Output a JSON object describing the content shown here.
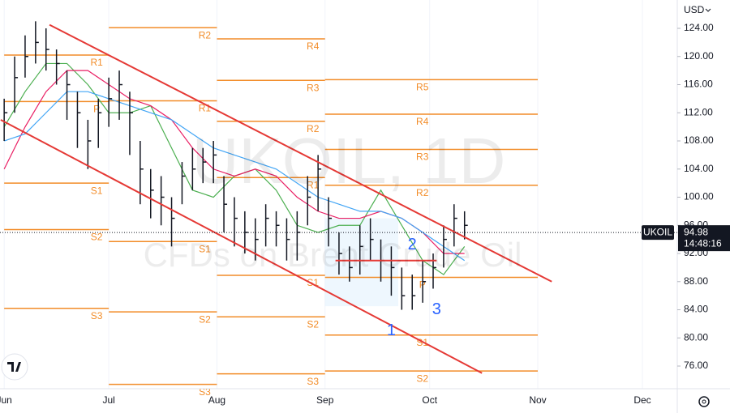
{
  "chart_data": {
    "type": "ohlc",
    "title": "UKOIL, 1D",
    "subtitle": "CFDs on Brent Crude Oil",
    "currency": "USD",
    "symbol": "UKOIL",
    "last_price": 94.98,
    "countdown": "14:48:16",
    "xlim": [
      -1.2,
      193
    ],
    "ylim": [
      72.78,
      128.03
    ],
    "xticks": [
      {
        "value": 0,
        "label": "Jun"
      },
      {
        "value": 30,
        "label": "Jul"
      },
      {
        "value": 61,
        "label": "Aug"
      },
      {
        "value": 92,
        "label": "Sep"
      },
      {
        "value": 122,
        "label": "Oct"
      },
      {
        "value": 153,
        "label": "Nov"
      },
      {
        "value": 183,
        "label": "Dec"
      }
    ],
    "yticks": [
      {
        "value": 76,
        "label": "76.00"
      },
      {
        "value": 80,
        "label": "80.00"
      },
      {
        "value": 84,
        "label": "84.00"
      },
      {
        "value": 88,
        "label": "88.00"
      },
      {
        "value": 92,
        "label": "92.00"
      },
      {
        "value": 96,
        "label": "96.00"
      },
      {
        "value": 100,
        "label": "100.00"
      },
      {
        "value": 104,
        "label": "104.00"
      },
      {
        "value": 108,
        "label": "108.00"
      },
      {
        "value": 112,
        "label": "112.00"
      },
      {
        "value": 116,
        "label": "116.00"
      },
      {
        "value": 120,
        "label": "120.00"
      },
      {
        "value": 124,
        "label": "124.00"
      }
    ],
    "bar_color": "#131722",
    "x": [
      0,
      3,
      6,
      9,
      12,
      15,
      18,
      21,
      24,
      27,
      30,
      33,
      36,
      39,
      42,
      45,
      48,
      51,
      54,
      57,
      60,
      63,
      66,
      69,
      72,
      75,
      78,
      81,
      84,
      87,
      90,
      93,
      96,
      99,
      102,
      105,
      108,
      111,
      114,
      117,
      120,
      123,
      126,
      129,
      132
    ],
    "high": [
      114,
      120,
      123,
      125,
      124,
      121,
      118,
      115,
      111,
      114,
      117,
      118,
      115,
      108,
      104,
      103,
      100,
      105,
      107,
      107,
      108,
      103,
      100,
      98,
      97,
      99,
      98,
      97,
      98,
      103,
      106,
      100,
      95,
      93,
      96,
      97,
      94,
      93,
      90,
      89,
      91,
      92,
      96,
      99,
      98
    ],
    "low": [
      108,
      112,
      117,
      119,
      118,
      116,
      111,
      107,
      104,
      107,
      110,
      111,
      106,
      99,
      97,
      96,
      93,
      99,
      101,
      102,
      102,
      95,
      93,
      92,
      91,
      93,
      93,
      91,
      91,
      96,
      98,
      93,
      89,
      88,
      89,
      91,
      88,
      86,
      84,
      84,
      85,
      87,
      90,
      93,
      94
    ],
    "close": [
      112,
      117,
      120,
      122,
      121,
      119,
      116,
      112,
      108,
      112,
      114,
      116,
      112,
      104,
      101,
      100,
      97,
      103,
      104,
      105,
      106,
      99,
      97,
      95,
      94,
      97,
      96,
      94,
      95,
      100,
      104,
      97,
      92,
      90,
      93,
      94,
      91,
      90,
      86,
      86,
      88,
      90,
      94,
      97,
      96
    ],
    "ma_x": [
      0,
      6,
      12,
      18,
      24,
      30,
      36,
      42,
      48,
      54,
      60,
      66,
      72,
      78,
      84,
      90,
      96,
      102,
      108,
      114,
      120,
      126,
      132
    ],
    "moving_averages": [
      {
        "color": "#4caf50",
        "values": [
          110,
          115,
          119,
          119,
          116,
          112,
          112,
          113,
          107,
          101,
          100,
          103,
          104,
          101,
          96,
          95,
          96,
          96,
          101,
          96,
          91,
          89,
          93
        ]
      },
      {
        "color": "#e91e63",
        "values": [
          104,
          110,
          115,
          118,
          118,
          116,
          114,
          113,
          111,
          107,
          104,
          103,
          104,
          103,
          100,
          98,
          97,
          97,
          98,
          97,
          95,
          92,
          92
        ]
      },
      {
        "color": "#42a5f5",
        "values": [
          108,
          109,
          112,
          115,
          115,
          114,
          113,
          112,
          111,
          109,
          107,
          106,
          105,
          104,
          102,
          100,
          99,
          98,
          98,
          97,
          95,
          93,
          91
        ]
      }
    ],
    "level_color": "#f28c28",
    "levels": [
      {
        "label": "R1",
        "value": 120.2,
        "from": 0,
        "to": 30
      },
      {
        "label": "P",
        "value": 113.6,
        "from": 0,
        "to": 30
      },
      {
        "label": "S1",
        "value": 102.0,
        "from": 0,
        "to": 30
      },
      {
        "label": "S2",
        "value": 95.4,
        "from": 0,
        "to": 30
      },
      {
        "label": "S3",
        "value": 84.2,
        "from": 0,
        "to": 30
      },
      {
        "label": "R2",
        "value": 124.1,
        "from": 30,
        "to": 61
      },
      {
        "label": "R1",
        "value": 113.7,
        "from": 30,
        "to": 61
      },
      {
        "label": "S1",
        "value": 93.7,
        "from": 30,
        "to": 61
      },
      {
        "label": "S2",
        "value": 83.7,
        "from": 30,
        "to": 61
      },
      {
        "label": "S3",
        "value": 73.4,
        "from": 30,
        "to": 61
      },
      {
        "label": "R4",
        "value": 122.5,
        "from": 61,
        "to": 92
      },
      {
        "label": "R3",
        "value": 116.6,
        "from": 61,
        "to": 92
      },
      {
        "label": "R2",
        "value": 110.8,
        "from": 61,
        "to": 92
      },
      {
        "label": "R1",
        "value": 102.8,
        "from": 61,
        "to": 92
      },
      {
        "label": "S1",
        "value": 88.9,
        "from": 61,
        "to": 92
      },
      {
        "label": "S2",
        "value": 83.0,
        "from": 61,
        "to": 92
      },
      {
        "label": "S3",
        "value": 74.9,
        "from": 61,
        "to": 92
      },
      {
        "label": "R5",
        "value": 116.7,
        "from": 92,
        "to": 153
      },
      {
        "label": "R4",
        "value": 111.8,
        "from": 92,
        "to": 153
      },
      {
        "label": "R3",
        "value": 106.8,
        "from": 92,
        "to": 153
      },
      {
        "label": "R2",
        "value": 101.7,
        "from": 92,
        "to": 153
      },
      {
        "label": "P",
        "value": 88.6,
        "from": 92,
        "to": 153
      },
      {
        "label": "S1",
        "value": 80.4,
        "from": 92,
        "to": 153
      },
      {
        "label": "S2",
        "value": 75.3,
        "from": 92,
        "to": 153
      }
    ],
    "trend_color": "#e53935",
    "trend_lines": [
      {
        "x": [
          13,
          157
        ],
        "y": [
          124.5,
          88
        ]
      },
      {
        "x": [
          -1,
          137
        ],
        "y": [
          111,
          75
        ]
      },
      {
        "x": [
          95,
          124
        ],
        "y": [
          91,
          91
        ]
      }
    ],
    "annotations": [
      {
        "text": "1",
        "x": 111,
        "y": 81
      },
      {
        "text": "2",
        "x": 117,
        "y": 93.2
      },
      {
        "text": "3",
        "x": 124,
        "y": 84
      }
    ]
  }
}
